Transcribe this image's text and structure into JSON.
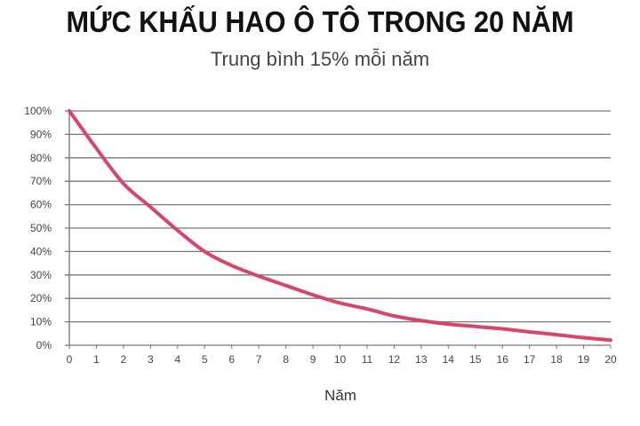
{
  "chart_data": {
    "type": "line",
    "title": "MỨC KHẤU HAO Ô TÔ TRONG 20 NĂM",
    "subtitle": "Trung bình 15% mỗi năm",
    "xlabel": "Năm",
    "ylabel": "",
    "x": [
      0,
      1,
      2,
      3,
      4,
      5,
      6,
      7,
      8,
      9,
      10,
      11,
      12,
      13,
      14,
      15,
      16,
      17,
      18,
      19,
      20
    ],
    "values": [
      100,
      84,
      69,
      59,
      49,
      40,
      34,
      29.5,
      25.5,
      21.5,
      18,
      15.5,
      12.5,
      10.5,
      9,
      8,
      7,
      5.7,
      4.5,
      3.2,
      2.2
    ],
    "xlim": [
      0,
      20
    ],
    "ylim": [
      0,
      100
    ],
    "xticks": [
      "0",
      "1",
      "2",
      "3",
      "4",
      "5",
      "6",
      "7",
      "8",
      "9",
      "10",
      "11",
      "12",
      "13",
      "14",
      "15",
      "16",
      "17",
      "18",
      "19",
      "20"
    ],
    "yticks": [
      "0%",
      "10%",
      "20%",
      "30%",
      "40%",
      "50%",
      "60%",
      "70%",
      "80%",
      "90%",
      "100%"
    ],
    "grid": "horizontal",
    "legend": "none",
    "line_color": "#d6456a"
  }
}
